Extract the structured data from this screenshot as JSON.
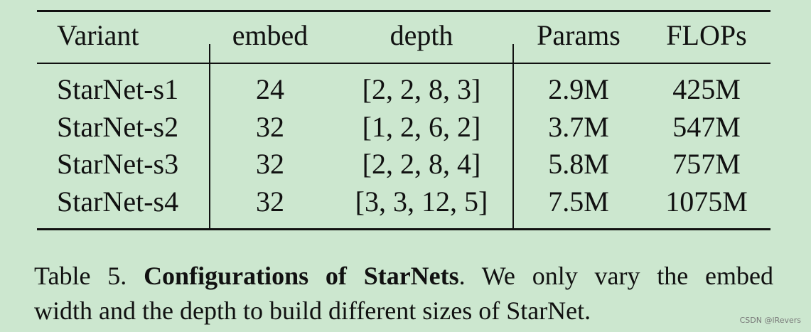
{
  "table": {
    "header": [
      "Variant",
      "embed",
      "depth",
      "Params",
      "FLOPs"
    ],
    "rows": [
      [
        "StarNet-s1",
        "24",
        "[2, 2, 8, 3]",
        "2.9M",
        "425M"
      ],
      [
        "StarNet-s2",
        "32",
        "[1, 2, 6, 2]",
        "3.7M",
        "547M"
      ],
      [
        "StarNet-s3",
        "32",
        "[2, 2, 8, 4]",
        "5.8M",
        "757M"
      ],
      [
        "StarNet-s4",
        "32",
        "[3, 3, 12, 5]",
        "7.5M",
        "1075M"
      ]
    ]
  },
  "caption": {
    "label": "Table 5.",
    "title": "Configurations of StarNets",
    "line1": ". We only vary the embed",
    "line2": "width and the depth to build different sizes of StarNet."
  },
  "watermark": "CSDN @lRevers"
}
